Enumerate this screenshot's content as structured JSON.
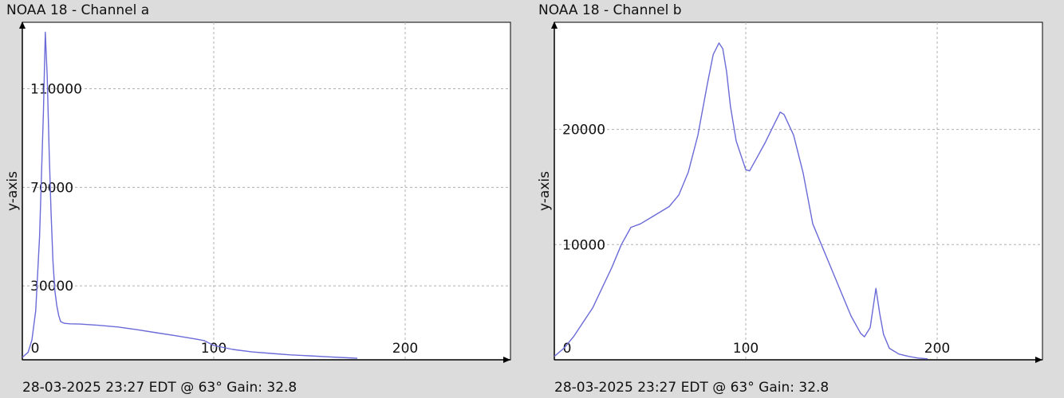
{
  "colors": {
    "line": "#6a6ad8",
    "grid": "#b0b0b0",
    "plot_bg": "#ffffff",
    "window_bg": "#dcdcdc",
    "axis": "#000000"
  },
  "charts": [
    {
      "title": "NOAA 18 - Channel a",
      "footer": "28-03-2025 23:27 EDT @ 63° Gain: 32.8"
    },
    {
      "title": "NOAA 18 - Channel b",
      "footer": "28-03-2025 23:27 EDT @ 63° Gain: 32.8"
    }
  ],
  "chart_data": [
    {
      "type": "line",
      "title": "NOAA 18 - Channel a",
      "xlabel": "",
      "ylabel": "y-axis",
      "xlim": [
        0,
        255
      ],
      "ylim": [
        0,
        137000
      ],
      "grid": true,
      "xticks": [
        0,
        100,
        200
      ],
      "yticks": [
        30000,
        70000,
        110000
      ],
      "series": [
        {
          "x": [
            0,
            3,
            5,
            7,
            9,
            10,
            11,
            12,
            13,
            14,
            15,
            16,
            17,
            18,
            19,
            20,
            22,
            25,
            30,
            40,
            50,
            60,
            70,
            80,
            90,
            95,
            100,
            110,
            120,
            130,
            140,
            150,
            160,
            170,
            175
          ],
          "y": [
            1000,
            3000,
            8000,
            20000,
            50000,
            75000,
            100000,
            133000,
            115000,
            85000,
            60000,
            40000,
            28000,
            22000,
            18000,
            15500,
            14800,
            14600,
            14500,
            14000,
            13300,
            12200,
            11000,
            9800,
            8500,
            7800,
            5800,
            4200,
            3200,
            2600,
            2000,
            1600,
            1200,
            800,
            600
          ]
        }
      ]
    },
    {
      "type": "line",
      "title": "NOAA 18 - Channel b",
      "xlabel": "",
      "ylabel": "y-axis",
      "xlim": [
        0,
        255
      ],
      "ylim": [
        0,
        29300
      ],
      "grid": true,
      "xticks": [
        0,
        100,
        200
      ],
      "yticks": [
        10000,
        20000
      ],
      "series": [
        {
          "x": [
            0,
            5,
            10,
            20,
            30,
            35,
            40,
            45,
            50,
            60,
            65,
            70,
            75,
            80,
            83,
            86,
            88,
            90,
            92,
            95,
            100,
            102,
            105,
            110,
            115,
            118,
            120,
            125,
            130,
            135,
            140,
            145,
            150,
            155,
            160,
            162,
            165,
            168,
            170,
            172,
            175,
            180,
            185,
            190,
            195
          ],
          "y": [
            300,
            1000,
            2000,
            4500,
            8000,
            10000,
            11500,
            11800,
            12300,
            13300,
            14300,
            16300,
            19500,
            24000,
            26500,
            27500,
            27000,
            25000,
            22000,
            19000,
            16500,
            16400,
            17300,
            18800,
            20500,
            21500,
            21300,
            19500,
            16200,
            11800,
            9800,
            7800,
            5800,
            3800,
            2300,
            2000,
            2800,
            6200,
            4000,
            2200,
            1000,
            500,
            300,
            150,
            80
          ]
        }
      ]
    }
  ]
}
